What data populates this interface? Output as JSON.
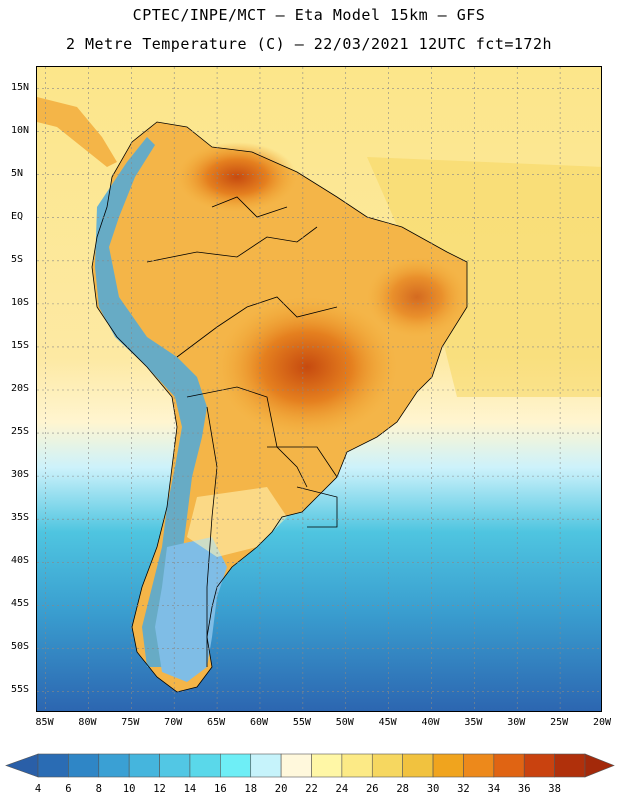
{
  "header": {
    "title_line1": "CPTEC/INPE/MCT  –   Eta Model 15km  –  GFS",
    "title_line2": "2 Metre Temperature (C)  –  22/03/2021 12UTC fct=172h"
  },
  "map": {
    "lat_labels": [
      "15N",
      "10N",
      "5N",
      "EQ",
      "5S",
      "10S",
      "15S",
      "20S",
      "25S",
      "30S",
      "35S",
      "40S",
      "45S",
      "50S",
      "55S"
    ],
    "lon_labels": [
      "85W",
      "80W",
      "75W",
      "70W",
      "65W",
      "60W",
      "55W",
      "50W",
      "45W",
      "40W",
      "35W",
      "30W",
      "25W",
      "20W"
    ],
    "lat_range_deg": [
      -57.5,
      17.5
    ],
    "lon_range_deg": [
      -86,
      -20
    ],
    "colors": {
      "ocean_north": "#fce68a",
      "ocean_mid": "#fde9a3",
      "ocean_cool": "#cdf2fb",
      "ocean_cold": "#4fc5e0",
      "ocean_colder": "#3a9fd0",
      "ocean_coldest": "#2c65b0",
      "land_warm": "#f2a935",
      "land_hot": "#e5801f",
      "land_hottest": "#c64a0f",
      "andes_cold": "#4ea9dc",
      "patagonia": "#7fbde6",
      "grid": "#888888",
      "border": "#000000"
    }
  },
  "colorbar": {
    "labels": [
      "4",
      "6",
      "8",
      "10",
      "12",
      "14",
      "16",
      "18",
      "20",
      "22",
      "24",
      "26",
      "28",
      "30",
      "32",
      "34",
      "36",
      "38"
    ],
    "colors": [
      "#2a6cb4",
      "#2f86c6",
      "#3aa0d4",
      "#45b5dd",
      "#52c7e4",
      "#5ad8ea",
      "#6eeef6",
      "#c6f3fb",
      "#fff8dc",
      "#fff7a6",
      "#fcea86",
      "#f6d760",
      "#f1c23f",
      "#f0a41e",
      "#ed891b",
      "#e06413",
      "#c9420f",
      "#b0300b"
    ]
  }
}
